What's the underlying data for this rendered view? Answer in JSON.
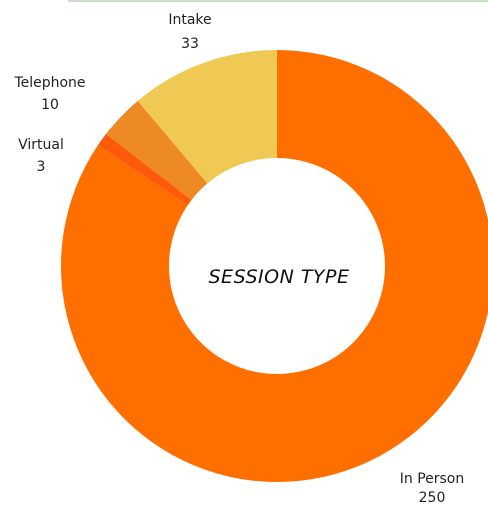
{
  "chart_data": {
    "type": "donut",
    "title": "SESSION TYPE",
    "categories": [
      "In Person",
      "Virtual",
      "Telephone",
      "Intake"
    ],
    "values": [
      250,
      3,
      10,
      33
    ],
    "colors": [
      "#ff6f00",
      "#ff5a0a",
      "#ee8a24",
      "#f0c954"
    ],
    "label_positions": [
      "bottom-right",
      "left",
      "upper-left",
      "top"
    ]
  }
}
